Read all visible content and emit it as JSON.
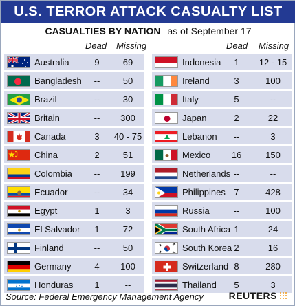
{
  "title": "U.S. TERROR ATTACK CASUALTY LIST",
  "subtitle_bold": "CASUALTIES BY NATION",
  "subtitle_date": "as of September 17",
  "col_dead": "Dead",
  "col_missing": "Missing",
  "left_rows": [
    {
      "name": "Australia",
      "dead": "9",
      "missing": "69",
      "flag": "australia-flag-icon"
    },
    {
      "name": "Bangladesh",
      "dead": "--",
      "missing": "50",
      "flag": "bangladesh-flag-icon"
    },
    {
      "name": "Brazil",
      "dead": "--",
      "missing": "30",
      "flag": "brazil-flag-icon"
    },
    {
      "name": "Britain",
      "dead": "--",
      "missing": "300",
      "flag": "britain-flag-icon"
    },
    {
      "name": "Canada",
      "dead": "3",
      "missing": "40 - 75",
      "flag": "canada-flag-icon"
    },
    {
      "name": "China",
      "dead": "2",
      "missing": "51",
      "flag": "china-flag-icon"
    },
    {
      "name": "Colombia",
      "dead": "--",
      "missing": "199",
      "flag": "colombia-flag-icon"
    },
    {
      "name": "Ecuador",
      "dead": "--",
      "missing": "34",
      "flag": "ecuador-flag-icon"
    },
    {
      "name": "Egypt",
      "dead": "1",
      "missing": "3",
      "flag": "egypt-flag-icon"
    },
    {
      "name": "El Salvador",
      "dead": "1",
      "missing": "72",
      "flag": "el-salvador-flag-icon"
    },
    {
      "name": "Finland",
      "dead": "--",
      "missing": "50",
      "flag": "finland-flag-icon"
    },
    {
      "name": "Germany",
      "dead": "4",
      "missing": "100",
      "flag": "germany-flag-icon"
    },
    {
      "name": "Honduras",
      "dead": "1",
      "missing": "--",
      "flag": "honduras-flag-icon"
    }
  ],
  "right_rows": [
    {
      "name": "Indonesia",
      "dead": "1",
      "missing": "12 - 15",
      "flag": "indonesia-flag-icon"
    },
    {
      "name": "Ireland",
      "dead": "3",
      "missing": "100",
      "flag": "ireland-flag-icon"
    },
    {
      "name": "Italy",
      "dead": "5",
      "missing": "--",
      "flag": "italy-flag-icon"
    },
    {
      "name": "Japan",
      "dead": "2",
      "missing": "22",
      "flag": "japan-flag-icon"
    },
    {
      "name": "Lebanon",
      "dead": "--",
      "missing": "3",
      "flag": "lebanon-flag-icon"
    },
    {
      "name": "Mexico",
      "dead": "16",
      "missing": "150",
      "flag": "mexico-flag-icon"
    },
    {
      "name": "Netherlands",
      "dead": "--",
      "missing": "--",
      "flag": "netherlands-flag-icon"
    },
    {
      "name": "Philippines",
      "dead": "7",
      "missing": "428",
      "flag": "philippines-flag-icon"
    },
    {
      "name": "Russia",
      "dead": "--",
      "missing": "100",
      "flag": "russia-flag-icon"
    },
    {
      "name": "South Africa",
      "dead": "1",
      "missing": "24",
      "flag": "south-africa-flag-icon"
    },
    {
      "name": "South Korea",
      "dead": "2",
      "missing": "16",
      "flag": "south-korea-flag-icon"
    },
    {
      "name": "Switzerland",
      "dead": "8",
      "missing": "280",
      "flag": "switzerland-flag-icon"
    },
    {
      "name": "Thailand",
      "dead": "5",
      "missing": "3",
      "flag": "thailand-flag-icon"
    }
  ],
  "source": "Source: Federal Emergency Management Agency",
  "logo": "REUTERS",
  "colors": {
    "title_bar": "#233a93",
    "row_bg": "#d8dcec"
  }
}
